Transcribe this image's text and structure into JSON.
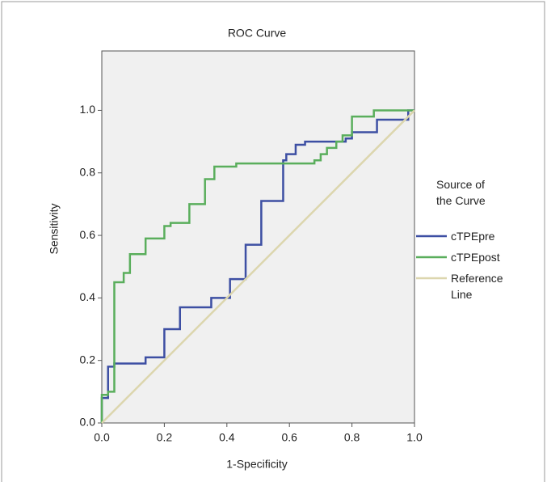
{
  "chart_data": {
    "type": "line",
    "title": "ROC Curve",
    "x_label": "1-Specificity",
    "y_label": "Sensitivity",
    "legend_title": "Source of the Curve",
    "legend_position": "right",
    "xlim": [
      0,
      1
    ],
    "ylim": [
      0,
      1.19
    ],
    "xticks": [
      {
        "value": 0,
        "label": "0.0"
      },
      {
        "value": 0.2,
        "label": "0.2"
      },
      {
        "value": 0.4,
        "label": "0.4"
      },
      {
        "value": 0.6,
        "label": "0.6"
      },
      {
        "value": 0.8,
        "label": "0.8"
      },
      {
        "value": 1,
        "label": "1.0"
      }
    ],
    "yticks": [
      {
        "value": 0,
        "label": "0.0"
      },
      {
        "value": 0.2,
        "label": "0.2"
      },
      {
        "value": 0.4,
        "label": "0.4"
      },
      {
        "value": 0.6,
        "label": "0.6"
      },
      {
        "value": 0.8,
        "label": "0.8"
      },
      {
        "value": 1,
        "label": "1.0"
      }
    ],
    "series": [
      {
        "name": "cTPEpre",
        "color": "#3d4fa3",
        "x": [
          0,
          0,
          0.02,
          0.02,
          0.04,
          0.04,
          0.14,
          0.14,
          0.2,
          0.2,
          0.25,
          0.25,
          0.35,
          0.35,
          0.41,
          0.41,
          0.46,
          0.46,
          0.51,
          0.51,
          0.58,
          0.58,
          0.59,
          0.59,
          0.62,
          0.62,
          0.65,
          0.65,
          0.78,
          0.78,
          0.8,
          0.8,
          0.88,
          0.88,
          0.98,
          0.98,
          1
        ],
        "values": [
          0,
          0.08,
          0.08,
          0.18,
          0.18,
          0.19,
          0.19,
          0.21,
          0.21,
          0.3,
          0.3,
          0.37,
          0.37,
          0.4,
          0.4,
          0.46,
          0.46,
          0.57,
          0.57,
          0.71,
          0.71,
          0.84,
          0.84,
          0.86,
          0.86,
          0.89,
          0.89,
          0.9,
          0.9,
          0.91,
          0.91,
          0.93,
          0.93,
          0.97,
          0.97,
          1,
          1
        ]
      },
      {
        "name": "cTPEpost",
        "color": "#5aae5c",
        "x": [
          0,
          0,
          0.02,
          0.02,
          0.04,
          0.04,
          0.07,
          0.07,
          0.09,
          0.09,
          0.14,
          0.14,
          0.2,
          0.2,
          0.22,
          0.22,
          0.28,
          0.28,
          0.33,
          0.33,
          0.36,
          0.36,
          0.43,
          0.43,
          0.68,
          0.68,
          0.7,
          0.7,
          0.72,
          0.72,
          0.75,
          0.75,
          0.77,
          0.77,
          0.8,
          0.8,
          0.87,
          0.87,
          1
        ],
        "values": [
          0,
          0.09,
          0.09,
          0.1,
          0.1,
          0.45,
          0.45,
          0.48,
          0.48,
          0.54,
          0.54,
          0.59,
          0.59,
          0.63,
          0.63,
          0.64,
          0.64,
          0.7,
          0.7,
          0.78,
          0.78,
          0.82,
          0.82,
          0.83,
          0.83,
          0.84,
          0.84,
          0.86,
          0.86,
          0.88,
          0.88,
          0.9,
          0.9,
          0.92,
          0.92,
          0.98,
          0.98,
          1,
          1
        ]
      },
      {
        "name": "Reference Line",
        "color": "#dcd6ae",
        "x": [
          0,
          1
        ],
        "values": [
          0,
          1
        ]
      }
    ]
  }
}
